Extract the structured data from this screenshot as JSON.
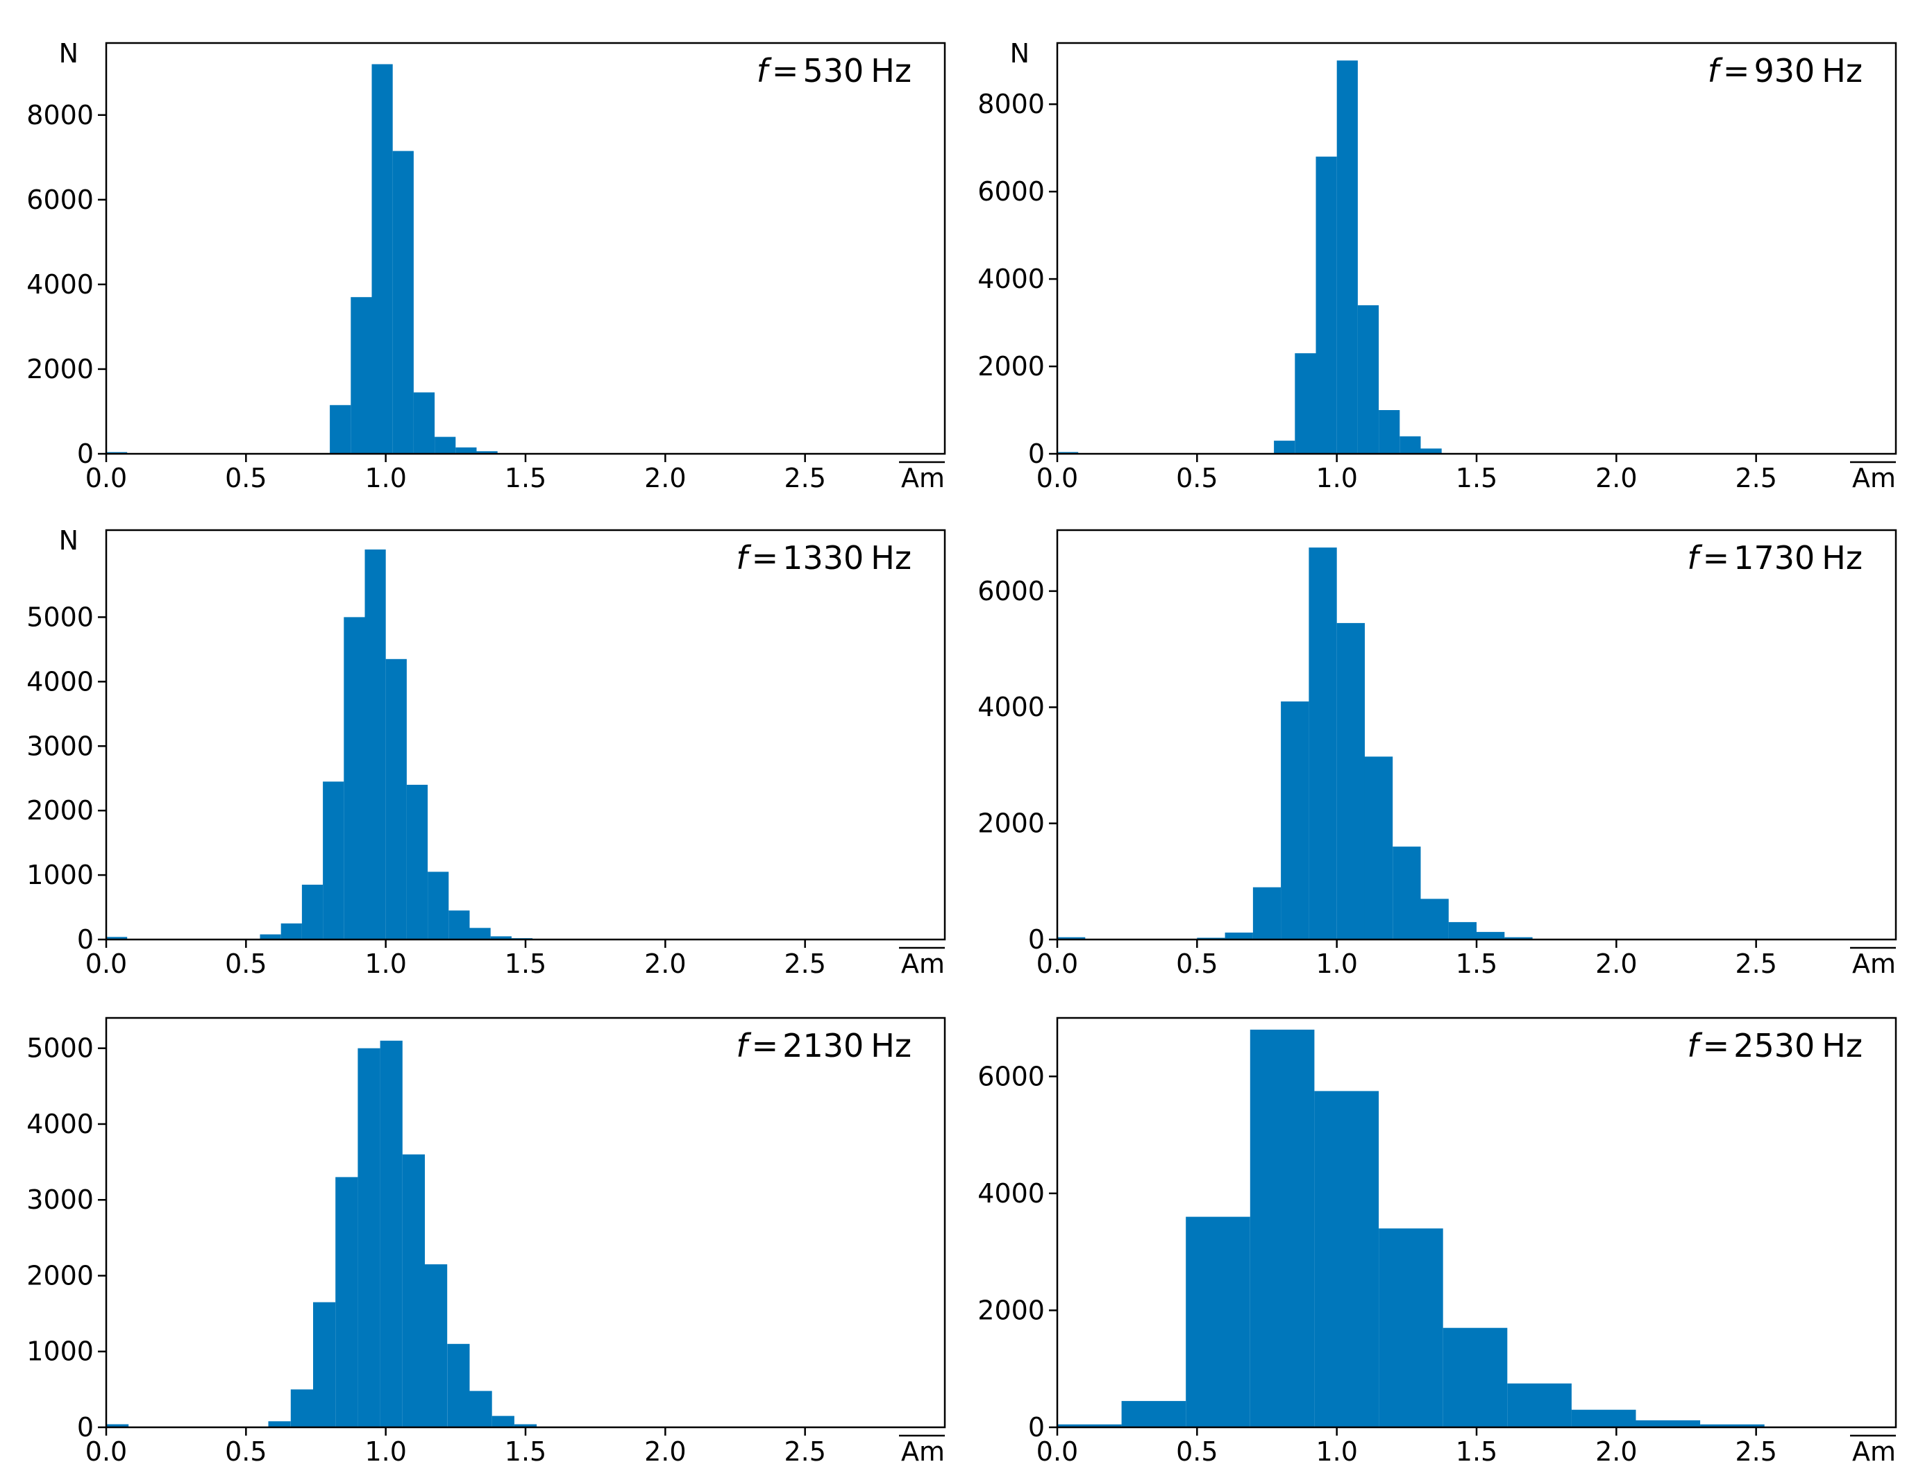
{
  "chart_data": [
    {
      "type": "bar",
      "panel": "top-left",
      "title": "f = 530 Hz",
      "title_f": "f",
      "title_eq": "=",
      "title_value": "530",
      "title_unit": "Hz",
      "ylabel": "N",
      "xlabel": "Am",
      "xlim": [
        0,
        3.0
      ],
      "ylim": [
        0,
        9700
      ],
      "xticks": [
        0.0,
        0.5,
        1.0,
        1.5,
        2.0,
        2.5
      ],
      "xtick_labels": [
        "0.0",
        "0.5",
        "1.0",
        "1.5",
        "2.0",
        "2.5"
      ],
      "yticks": [
        0,
        2000,
        4000,
        6000,
        8000
      ],
      "ytick_labels": [
        "0",
        "2000",
        "4000",
        "6000",
        "8000"
      ],
      "bin_edges": [
        0.0,
        0.075,
        0.8,
        0.875,
        0.95,
        1.025,
        1.1,
        1.175,
        1.25,
        1.325,
        1.4
      ],
      "values": [
        40,
        0,
        1150,
        3700,
        9200,
        7150,
        1450,
        400,
        150,
        60
      ]
    },
    {
      "type": "bar",
      "panel": "top-right",
      "title": "f = 930 Hz",
      "title_f": "f",
      "title_eq": "=",
      "title_value": "930",
      "title_unit": "Hz",
      "ylabel": "N",
      "xlabel": "Am",
      "xlim": [
        0,
        3.0
      ],
      "ylim": [
        0,
        9400
      ],
      "xticks": [
        0.0,
        0.5,
        1.0,
        1.5,
        2.0,
        2.5
      ],
      "xtick_labels": [
        "0.0",
        "0.5",
        "1.0",
        "1.5",
        "2.0",
        "2.5"
      ],
      "yticks": [
        0,
        2000,
        4000,
        6000,
        8000
      ],
      "ytick_labels": [
        "0",
        "2000",
        "4000",
        "6000",
        "8000"
      ],
      "bin_edges": [
        0.0,
        0.075,
        0.775,
        0.85,
        0.925,
        1.0,
        1.075,
        1.15,
        1.225,
        1.3,
        1.375
      ],
      "values": [
        40,
        0,
        300,
        2300,
        6800,
        9000,
        3400,
        1000,
        400,
        120
      ]
    },
    {
      "type": "bar",
      "panel": "middle-left",
      "title": "f = 1330 Hz",
      "title_f": "f",
      "title_eq": "=",
      "title_value": "1330",
      "title_unit": "Hz",
      "ylabel": "N",
      "xlabel": "Am",
      "xlim": [
        0,
        3.0
      ],
      "ylim": [
        0,
        6350
      ],
      "xticks": [
        0.0,
        0.5,
        1.0,
        1.5,
        2.0,
        2.5
      ],
      "xtick_labels": [
        "0.0",
        "0.5",
        "1.0",
        "1.5",
        "2.0",
        "2.5"
      ],
      "yticks": [
        0,
        1000,
        2000,
        3000,
        4000,
        5000
      ],
      "ytick_labels": [
        "0",
        "1000",
        "2000",
        "3000",
        "4000",
        "5000"
      ],
      "bin_edges": [
        0.0,
        0.075,
        0.55,
        0.625,
        0.7,
        0.775,
        0.85,
        0.925,
        1.0,
        1.075,
        1.15,
        1.225,
        1.3,
        1.375,
        1.45,
        1.525
      ],
      "values": [
        40,
        0,
        80,
        250,
        850,
        2450,
        5000,
        6050,
        4350,
        2400,
        1050,
        450,
        180,
        50,
        20
      ]
    },
    {
      "type": "bar",
      "panel": "middle-right",
      "title": "f = 1730 Hz",
      "title_f": "f",
      "title_eq": "=",
      "title_value": "1730",
      "title_unit": "Hz",
      "ylabel": "",
      "xlabel": "Am",
      "xlim": [
        0,
        3.0
      ],
      "ylim": [
        0,
        7050
      ],
      "xticks": [
        0.0,
        0.5,
        1.0,
        1.5,
        2.0,
        2.5
      ],
      "xtick_labels": [
        "0.0",
        "0.5",
        "1.0",
        "1.5",
        "2.0",
        "2.5"
      ],
      "yticks": [
        0,
        2000,
        4000,
        6000
      ],
      "ytick_labels": [
        "0",
        "2000",
        "4000",
        "6000"
      ],
      "bin_edges": [
        0.0,
        0.1,
        0.5,
        0.6,
        0.7,
        0.8,
        0.9,
        1.0,
        1.1,
        1.2,
        1.3,
        1.4,
        1.5,
        1.6,
        1.7
      ],
      "values": [
        40,
        0,
        30,
        120,
        900,
        4100,
        6750,
        5450,
        3150,
        1600,
        700,
        300,
        130,
        40
      ]
    },
    {
      "type": "bar",
      "panel": "bottom-left",
      "title": "f = 2130 Hz",
      "title_f": "f",
      "title_eq": "=",
      "title_value": "2130",
      "title_unit": "Hz",
      "ylabel": "",
      "xlabel": "Am",
      "xlim": [
        0,
        3.0
      ],
      "ylim": [
        0,
        5400
      ],
      "xticks": [
        0.0,
        0.5,
        1.0,
        1.5,
        2.0,
        2.5
      ],
      "xtick_labels": [
        "0.0",
        "0.5",
        "1.0",
        "1.5",
        "2.0",
        "2.5"
      ],
      "yticks": [
        0,
        1000,
        2000,
        3000,
        4000,
        5000
      ],
      "ytick_labels": [
        "0",
        "1000",
        "2000",
        "3000",
        "4000",
        "5000"
      ],
      "bin_edges": [
        0.0,
        0.08,
        0.58,
        0.66,
        0.74,
        0.82,
        0.9,
        0.98,
        1.06,
        1.14,
        1.22,
        1.3,
        1.38,
        1.46,
        1.54
      ],
      "values": [
        40,
        0,
        80,
        500,
        1650,
        3300,
        5000,
        5100,
        3600,
        2150,
        1100,
        480,
        150,
        40
      ]
    },
    {
      "type": "bar",
      "panel": "bottom-right",
      "title": "f = 2530 Hz",
      "title_f": "f",
      "title_eq": "=",
      "title_value": "2530",
      "title_unit": "Hz",
      "ylabel": "",
      "xlabel": "Am",
      "xlim": [
        0,
        3.0
      ],
      "ylim": [
        0,
        7000
      ],
      "xticks": [
        0.0,
        0.5,
        1.0,
        1.5,
        2.0,
        2.5
      ],
      "xtick_labels": [
        "0.0",
        "0.5",
        "1.0",
        "1.5",
        "2.0",
        "2.5"
      ],
      "yticks": [
        0,
        2000,
        4000,
        6000
      ],
      "ytick_labels": [
        "0",
        "2000",
        "4000",
        "6000"
      ],
      "bin_edges": [
        0.0,
        0.23,
        0.46,
        0.69,
        0.92,
        1.15,
        1.38,
        1.61,
        1.84,
        2.07,
        2.3,
        2.53
      ],
      "values": [
        50,
        450,
        3600,
        6800,
        5750,
        3400,
        1700,
        750,
        300,
        120,
        50
      ]
    }
  ]
}
